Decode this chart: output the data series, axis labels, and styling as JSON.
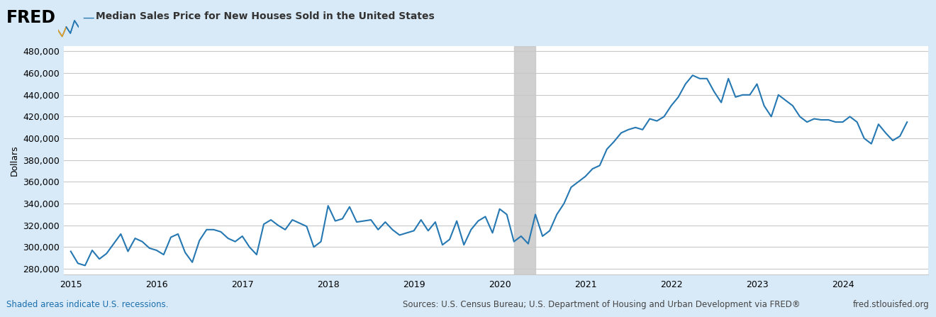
{
  "title": "Median Sales Price for New Houses Sold in the United States",
  "ylabel": "Dollars",
  "line_color": "#2678b2",
  "line_width": 1.5,
  "bg_color": "#ffffff",
  "outer_bg_color": "#d8e9f7",
  "grid_color": "#c8c8c8",
  "recession_color": "#c8c8c8",
  "recession_alpha": 0.85,
  "recession_start": 2020.1667,
  "recession_end": 2020.4167,
  "xlim": [
    2014.917,
    2025.0
  ],
  "ylim": [
    275000,
    485000
  ],
  "yticks": [
    280000,
    300000,
    320000,
    340000,
    360000,
    380000,
    400000,
    420000,
    440000,
    460000,
    480000
  ],
  "xticks": [
    2015,
    2016,
    2017,
    2018,
    2019,
    2020,
    2021,
    2022,
    2023,
    2024
  ],
  "footer_left": "Shaded areas indicate U.S. recessions.",
  "footer_center": "Sources: U.S. Census Bureau; U.S. Department of Housing and Urban Development via FRED®",
  "footer_right": "fred.stlouisfed.org",
  "dates": [
    2015.0,
    2015.0833,
    2015.1667,
    2015.25,
    2015.3333,
    2015.4167,
    2015.5,
    2015.5833,
    2015.6667,
    2015.75,
    2015.8333,
    2015.9167,
    2016.0,
    2016.0833,
    2016.1667,
    2016.25,
    2016.3333,
    2016.4167,
    2016.5,
    2016.5833,
    2016.6667,
    2016.75,
    2016.8333,
    2016.9167,
    2017.0,
    2017.0833,
    2017.1667,
    2017.25,
    2017.3333,
    2017.4167,
    2017.5,
    2017.5833,
    2017.6667,
    2017.75,
    2017.8333,
    2017.9167,
    2018.0,
    2018.0833,
    2018.1667,
    2018.25,
    2018.3333,
    2018.4167,
    2018.5,
    2018.5833,
    2018.6667,
    2018.75,
    2018.8333,
    2018.9167,
    2019.0,
    2019.0833,
    2019.1667,
    2019.25,
    2019.3333,
    2019.4167,
    2019.5,
    2019.5833,
    2019.6667,
    2019.75,
    2019.8333,
    2019.9167,
    2020.0,
    2020.0833,
    2020.1667,
    2020.25,
    2020.3333,
    2020.4167,
    2020.5,
    2020.5833,
    2020.6667,
    2020.75,
    2020.8333,
    2020.9167,
    2021.0,
    2021.0833,
    2021.1667,
    2021.25,
    2021.3333,
    2021.4167,
    2021.5,
    2021.5833,
    2021.6667,
    2021.75,
    2021.8333,
    2021.9167,
    2022.0,
    2022.0833,
    2022.1667,
    2022.25,
    2022.3333,
    2022.4167,
    2022.5,
    2022.5833,
    2022.6667,
    2022.75,
    2022.8333,
    2022.9167,
    2023.0,
    2023.0833,
    2023.1667,
    2023.25,
    2023.3333,
    2023.4167,
    2023.5,
    2023.5833,
    2023.6667,
    2023.75,
    2023.8333,
    2023.9167,
    2024.0,
    2024.0833,
    2024.1667,
    2024.25,
    2024.3333,
    2024.4167,
    2024.5,
    2024.5833,
    2024.6667,
    2024.75
  ],
  "values": [
    296000,
    285000,
    283000,
    297000,
    289000,
    294000,
    303000,
    312000,
    296000,
    308000,
    305000,
    299000,
    297000,
    293000,
    309000,
    312000,
    295000,
    286000,
    306000,
    316000,
    316000,
    314000,
    308000,
    305000,
    310000,
    300000,
    293000,
    321000,
    325000,
    320000,
    316000,
    325000,
    322000,
    319000,
    300000,
    305000,
    338000,
    324000,
    326000,
    337000,
    323000,
    324000,
    325000,
    316000,
    323000,
    316000,
    311000,
    313000,
    315000,
    325000,
    315000,
    323000,
    302000,
    307000,
    324000,
    302000,
    316000,
    324000,
    328000,
    313000,
    335000,
    330000,
    305000,
    310000,
    303000,
    330000,
    310000,
    315000,
    330000,
    340000,
    355000,
    360000,
    365000,
    372000,
    375000,
    390000,
    397000,
    405000,
    408000,
    410000,
    408000,
    418000,
    416000,
    420000,
    430000,
    438000,
    450000,
    458000,
    455000,
    455000,
    443000,
    433000,
    455000,
    438000,
    440000,
    440000,
    450000,
    430000,
    420000,
    440000,
    435000,
    430000,
    420000,
    415000,
    418000,
    417000,
    417000,
    415000,
    415000,
    420000,
    415000,
    400000,
    395000,
    413000,
    405000,
    398000,
    402000,
    415000
  ]
}
